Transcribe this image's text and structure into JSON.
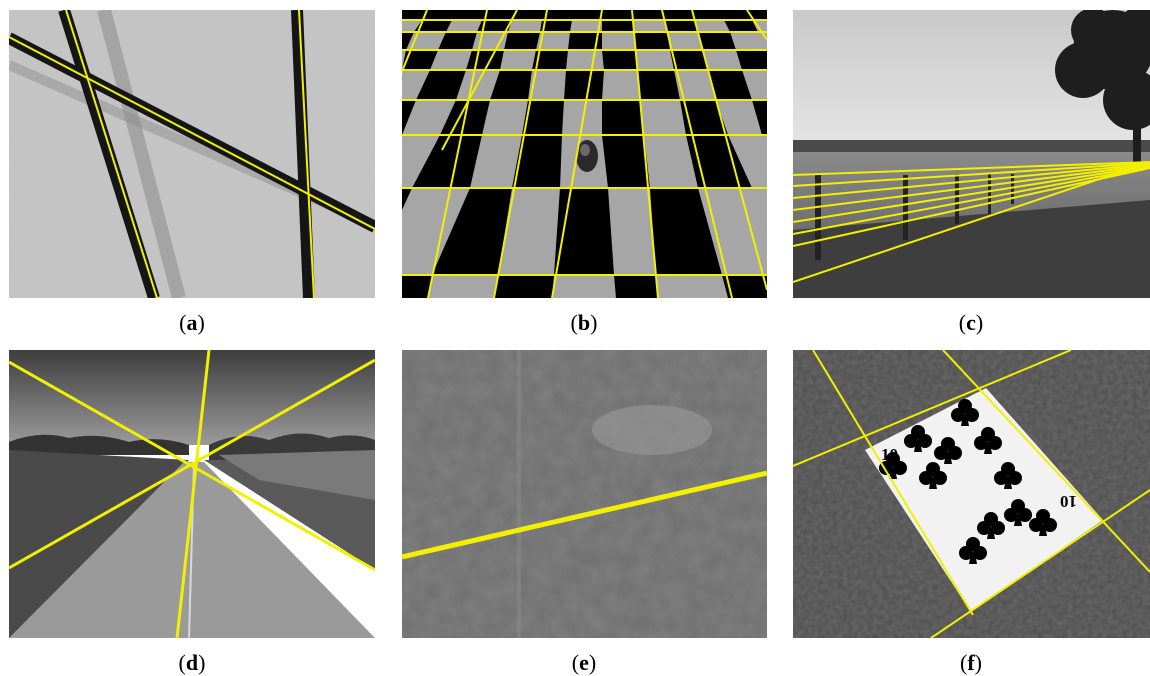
{
  "figure": {
    "panels": [
      {
        "id": "a",
        "caption_open": "(",
        "caption_letter": "a",
        "caption_close": ")",
        "content": "textured-surface-with-dark-stripes"
      },
      {
        "id": "b",
        "caption_open": "(",
        "caption_letter": "b",
        "caption_close": ")",
        "content": "perspective-checkerboard"
      },
      {
        "id": "c",
        "caption_open": "(",
        "caption_letter": "c",
        "caption_close": ")",
        "content": "field-with-fence"
      },
      {
        "id": "d",
        "caption_open": "(",
        "caption_letter": "d",
        "caption_close": ")",
        "content": "road-to-horizon"
      },
      {
        "id": "e",
        "caption_open": "(",
        "caption_letter": "e",
        "caption_close": ")",
        "content": "aerial-landscape"
      },
      {
        "id": "f",
        "caption_open": "(",
        "caption_letter": "f",
        "caption_close": ")",
        "content": "playing-card-ten-of-clubs"
      }
    ],
    "card_rank": "10",
    "line_color": "#f2ef00"
  }
}
